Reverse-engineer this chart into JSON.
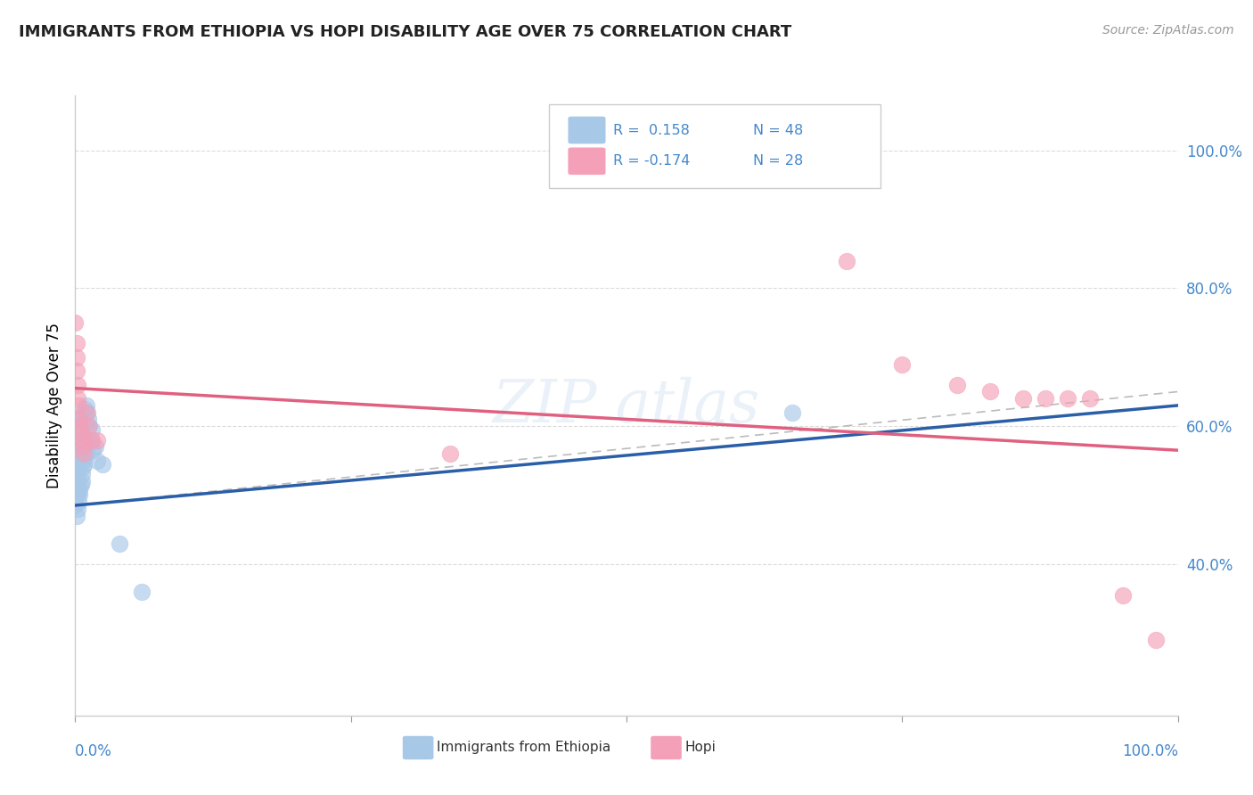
{
  "title": "IMMIGRANTS FROM ETHIOPIA VS HOPI DISABILITY AGE OVER 75 CORRELATION CHART",
  "source_text": "Source: ZipAtlas.com",
  "ylabel": "Disability Age Over 75",
  "xlim": [
    0,
    1.0
  ],
  "ylim": [
    0.18,
    1.08
  ],
  "yticks_right": [
    0.4,
    0.6,
    0.8,
    1.0
  ],
  "yticklabels_right": [
    "40.0%",
    "60.0%",
    "80.0%",
    "100.0%"
  ],
  "r_blue": 0.158,
  "n_blue": 48,
  "r_pink": -0.174,
  "n_pink": 28,
  "blue_color": "#a8c8e8",
  "pink_color": "#f4a0b8",
  "blue_line_color": "#2a5fa8",
  "pink_line_color": "#e06080",
  "dash_line_color": "#aaaaaa",
  "blue_points_x": [
    0.0,
    0.001,
    0.001,
    0.001,
    0.001,
    0.001,
    0.002,
    0.002,
    0.002,
    0.002,
    0.002,
    0.003,
    0.003,
    0.003,
    0.003,
    0.004,
    0.004,
    0.004,
    0.004,
    0.005,
    0.005,
    0.005,
    0.006,
    0.006,
    0.006,
    0.007,
    0.007,
    0.007,
    0.008,
    0.008,
    0.009,
    0.009,
    0.01,
    0.01,
    0.011,
    0.011,
    0.012,
    0.012,
    0.013,
    0.014,
    0.015,
    0.016,
    0.018,
    0.02,
    0.025,
    0.04,
    0.06,
    0.65
  ],
  "blue_points_y": [
    0.485,
    0.5,
    0.51,
    0.52,
    0.53,
    0.47,
    0.54,
    0.55,
    0.56,
    0.48,
    0.515,
    0.565,
    0.575,
    0.49,
    0.505,
    0.58,
    0.59,
    0.5,
    0.51,
    0.595,
    0.605,
    0.515,
    0.61,
    0.52,
    0.53,
    0.615,
    0.54,
    0.55,
    0.62,
    0.545,
    0.625,
    0.555,
    0.63,
    0.56,
    0.62,
    0.57,
    0.61,
    0.575,
    0.6,
    0.58,
    0.595,
    0.565,
    0.57,
    0.55,
    0.545,
    0.43,
    0.36,
    0.62
  ],
  "pink_points_x": [
    0.0,
    0.001,
    0.001,
    0.001,
    0.002,
    0.002,
    0.003,
    0.003,
    0.004,
    0.005,
    0.006,
    0.007,
    0.008,
    0.01,
    0.012,
    0.015,
    0.02,
    0.34,
    0.7,
    0.75,
    0.8,
    0.83,
    0.86,
    0.88,
    0.9,
    0.92,
    0.95,
    0.98
  ],
  "pink_points_y": [
    0.75,
    0.7,
    0.68,
    0.72,
    0.66,
    0.64,
    0.63,
    0.61,
    0.6,
    0.59,
    0.58,
    0.57,
    0.56,
    0.62,
    0.6,
    0.58,
    0.58,
    0.56,
    0.84,
    0.69,
    0.66,
    0.65,
    0.64,
    0.64,
    0.64,
    0.64,
    0.355,
    0.29
  ],
  "blue_trend_x": [
    0.0,
    1.0
  ],
  "blue_trend_y": [
    0.485,
    0.63
  ],
  "pink_trend_x": [
    0.0,
    1.0
  ],
  "pink_trend_y": [
    0.655,
    0.565
  ],
  "dash_line_x": [
    0.0,
    1.0
  ],
  "dash_line_y": [
    0.485,
    0.65
  ]
}
